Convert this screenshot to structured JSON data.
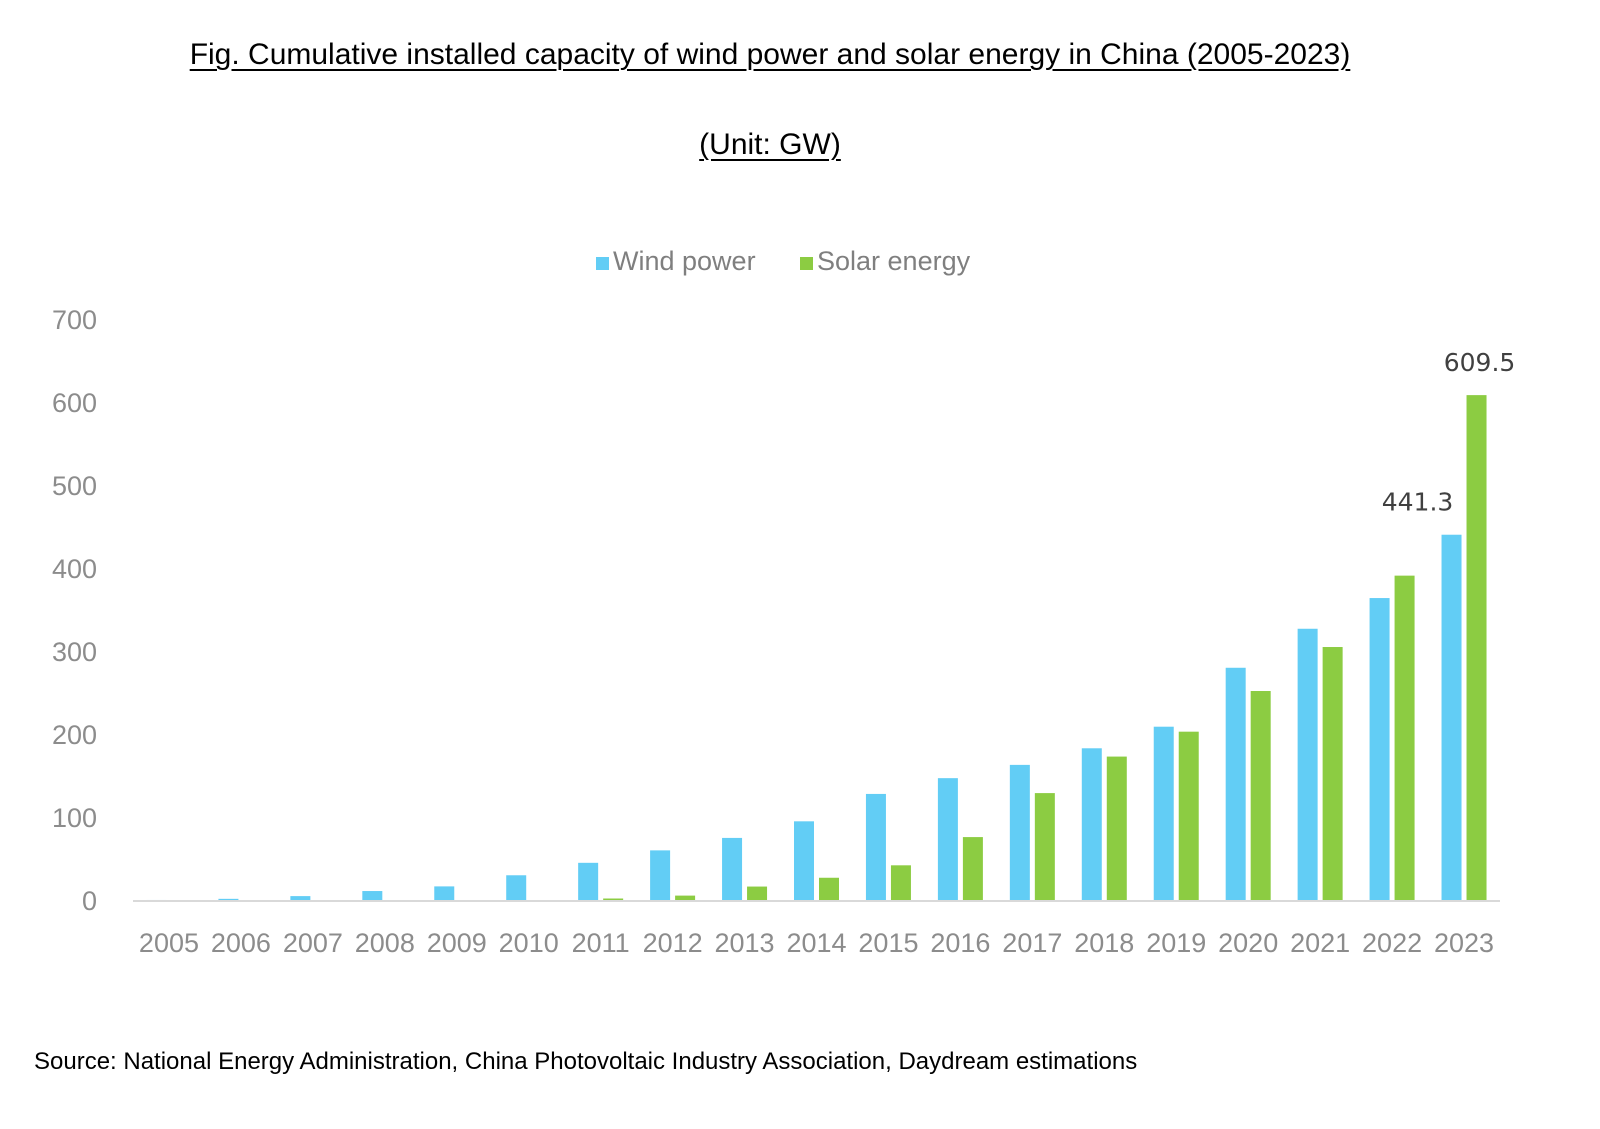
{
  "chart_data": {
    "type": "bar",
    "title": "Fig. Cumulative installed capacity of wind power and solar energy in China (2005-2023)",
    "subtitle": "(Unit: GW)",
    "xlabel": "",
    "ylabel": "",
    "ylim": [
      0,
      700
    ],
    "yticks": [
      0,
      100,
      200,
      300,
      400,
      500,
      600,
      700
    ],
    "grid": false,
    "legend_position": "top-center",
    "categories": [
      "2005",
      "2006",
      "2007",
      "2008",
      "2009",
      "2010",
      "2011",
      "2012",
      "2013",
      "2014",
      "2015",
      "2016",
      "2017",
      "2018",
      "2019",
      "2020",
      "2021",
      "2022",
      "2023"
    ],
    "series": [
      {
        "name": "Wind power",
        "color": "#62cdf5",
        "values": [
          1.3,
          2.6,
          5.9,
          12,
          17.6,
          31,
          46,
          61,
          76,
          96,
          129,
          148,
          164,
          184,
          210,
          281,
          328,
          365,
          441.3
        ]
      },
      {
        "name": "Solar energy",
        "color": "#8ccc42",
        "values": [
          0.07,
          0.08,
          0.1,
          0.14,
          0.3,
          0.8,
          3,
          6.5,
          17.4,
          28,
          43,
          77,
          130,
          174,
          204,
          253,
          306,
          392,
          609.5
        ]
      }
    ],
    "annotations": [
      {
        "series": "Wind power",
        "category": "2023",
        "text": "441.3"
      },
      {
        "series": "Solar energy",
        "category": "2023",
        "text": "609.5"
      }
    ]
  },
  "source_text": "Source: National Energy Administration, China Photovoltaic Industry Association, Daydream estimations"
}
